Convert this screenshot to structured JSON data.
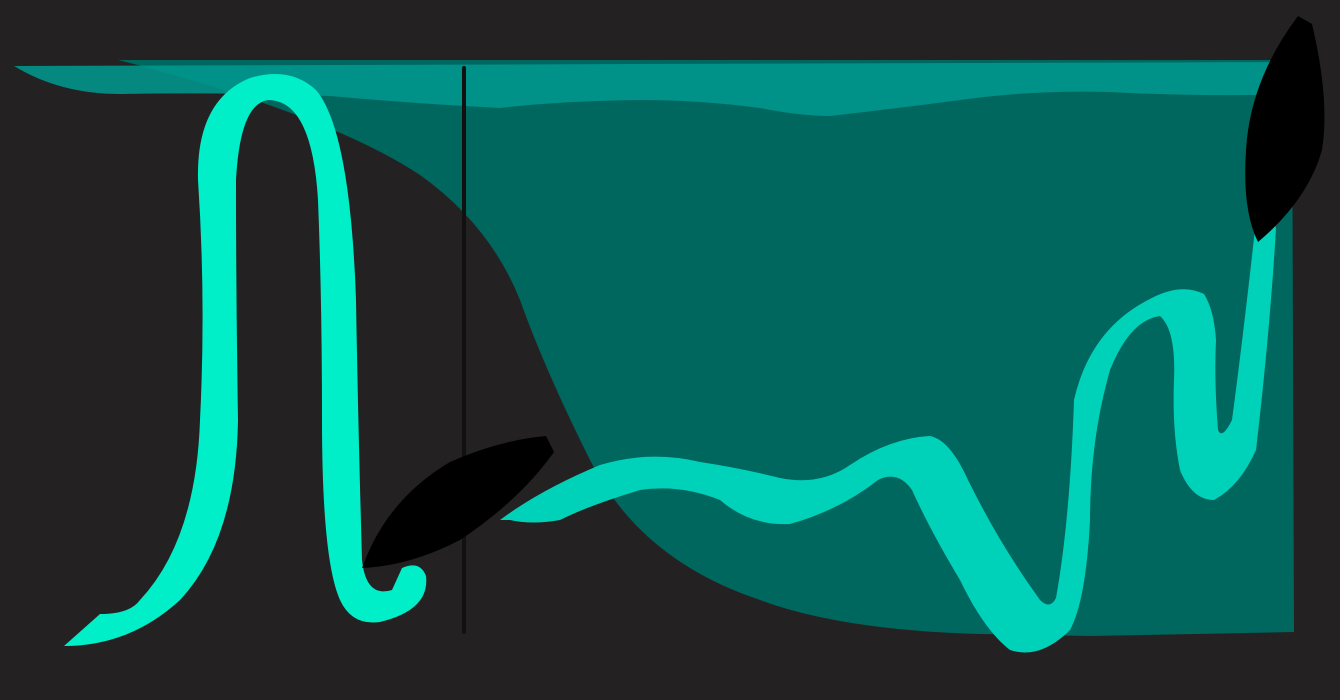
{
  "canvas": {
    "background": "#242122"
  },
  "palette": {
    "teal_dark": "#00675f",
    "teal_band": "#009a8f",
    "ribbon_bright": "#00eec8",
    "ribbon_mid": "#00d2ba",
    "divider": "#111111",
    "leaf": "#000000"
  },
  "icons": {
    "left_leaf": "leaf-icon",
    "right_leaf": "leaf-icon"
  }
}
